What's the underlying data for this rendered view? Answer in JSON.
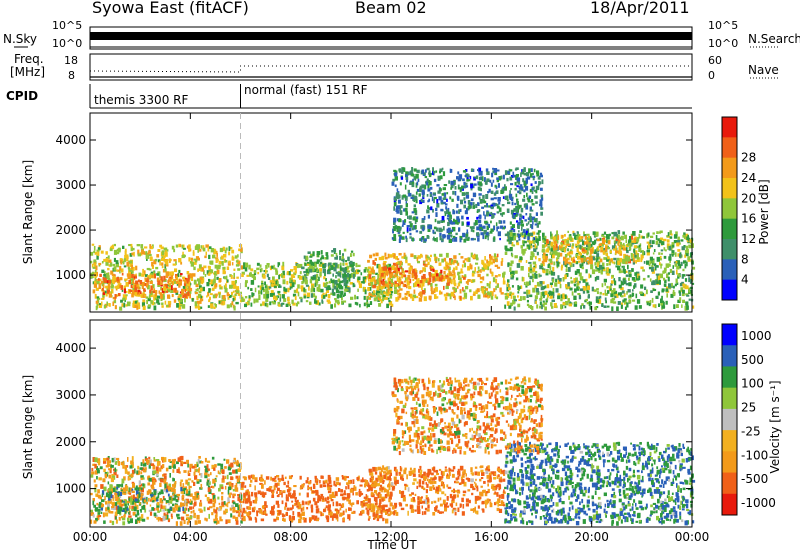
{
  "header": {
    "station": "Syowa East (fitACF)",
    "beam": "Beam 02",
    "date": "18/Apr/2011"
  },
  "panels": {
    "noise": {
      "left_label": "N.Sky",
      "right_label": "N.Search",
      "left_ticks": [
        "10^5",
        "10^0"
      ],
      "right_ticks": [
        "10^5",
        "10^0"
      ]
    },
    "freq": {
      "left_label_1": "Freq.",
      "left_label_2": "[MHz]",
      "left_ticks": [
        "18",
        "8"
      ],
      "right_label": "Nave",
      "right_ticks": [
        "60",
        "0"
      ]
    },
    "cpid": {
      "label": "CPID",
      "programs": [
        {
          "name": "themis 3300 RF",
          "start_hour": 0
        },
        {
          "name": "normal (fast) 151 RF",
          "start_hour": 6
        }
      ]
    }
  },
  "colors": {
    "power": [
      "#0000ff",
      "#2a60b8",
      "#3f8f6a",
      "#2e9a3c",
      "#8fc63a",
      "#f2c21a",
      "#f39a1a",
      "#f06018",
      "#e81a0c"
    ],
    "velocity": [
      "#e81a0c",
      "#f06018",
      "#f39a1a",
      "#f2b020",
      "#bfbfbf",
      "#8fc63a",
      "#2e9a3c",
      "#2a60b8",
      "#0000ff"
    ]
  },
  "chart_data": [
    {
      "type": "heatmap",
      "name": "power",
      "xlabel": "",
      "ylabel": "Slant Range [km]",
      "xlim": [
        0,
        24
      ],
      "ylim": [
        180,
        4600
      ],
      "yticks": [
        "1000",
        "2000",
        "3000",
        "4000"
      ],
      "colorbar": {
        "label": "Power [dB]",
        "ticks": [
          "4",
          "8",
          "12",
          "16",
          "20",
          "24",
          "28"
        ]
      },
      "regions": [
        {
          "x": [
            0.0,
            6.0
          ],
          "y": [
            300,
            1700
          ],
          "value": 20
        },
        {
          "x": [
            0.3,
            4.0
          ],
          "y": [
            550,
            1050
          ],
          "value": 26
        },
        {
          "x": [
            6.0,
            12.0
          ],
          "y": [
            350,
            1300
          ],
          "value": 17
        },
        {
          "x": [
            8.5,
            10.5
          ],
          "y": [
            700,
            1600
          ],
          "value": 14
        },
        {
          "x": [
            11.0,
            16.5
          ],
          "y": [
            500,
            1500
          ],
          "value": 22
        },
        {
          "x": [
            11.5,
            14.5
          ],
          "y": [
            800,
            1200
          ],
          "value": 26
        },
        {
          "x": [
            16.5,
            24.0
          ],
          "y": [
            300,
            2000
          ],
          "value": 16
        },
        {
          "x": [
            18.0,
            22.0
          ],
          "y": [
            1300,
            1900
          ],
          "value": 22
        },
        {
          "x": [
            12.0,
            18.0
          ],
          "y": [
            1800,
            3400
          ],
          "value": 10
        }
      ]
    },
    {
      "type": "heatmap",
      "name": "velocity",
      "xlabel": "Time UT",
      "ylabel": "Slant Range [km]",
      "xlim": [
        0,
        24
      ],
      "ylim": [
        180,
        4600
      ],
      "xticks": [
        "00:00",
        "04:00",
        "08:00",
        "12:00",
        "16:00",
        "20:00",
        "00:00"
      ],
      "yticks": [
        "1000",
        "2000",
        "3000",
        "4000"
      ],
      "colorbar": {
        "label": "Velocity [m s⁻¹]",
        "ticks": [
          "1000",
          "500",
          "100",
          "25",
          "-25",
          "-100",
          "-500",
          "-1000"
        ]
      },
      "regions": [
        {
          "x": [
            0.0,
            6.0
          ],
          "y": [
            300,
            1700
          ],
          "value": -100
        },
        {
          "x": [
            0.3,
            4.0
          ],
          "y": [
            550,
            1050
          ],
          "value": 100
        },
        {
          "x": [
            6.0,
            12.0
          ],
          "y": [
            350,
            1300
          ],
          "value": -400
        },
        {
          "x": [
            11.0,
            16.5
          ],
          "y": [
            500,
            1500
          ],
          "value": -300
        },
        {
          "x": [
            16.5,
            24.0
          ],
          "y": [
            300,
            2000
          ],
          "value": 300
        },
        {
          "x": [
            12.0,
            18.0
          ],
          "y": [
            1800,
            3400
          ],
          "value": -200
        }
      ]
    }
  ]
}
